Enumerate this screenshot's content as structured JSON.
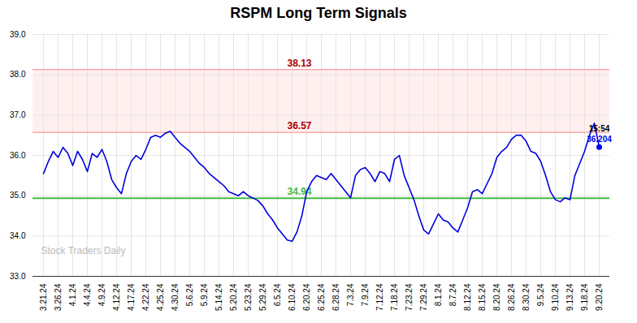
{
  "chart_data": {
    "type": "line",
    "title": "RSPM Long Term Signals",
    "categories": [
      "3.21.24",
      null,
      null,
      "3.26.24",
      null,
      null,
      "4.1.24",
      null,
      null,
      "4.4.24",
      null,
      null,
      "4.9.24",
      null,
      null,
      "4.12.24",
      null,
      null,
      "4.17.24",
      null,
      null,
      "4.22.24",
      null,
      null,
      "4.25.24",
      null,
      null,
      "4.30.24",
      null,
      null,
      "5.6.24",
      null,
      null,
      "5.9.24",
      null,
      null,
      "5.14.24",
      null,
      null,
      "5.20.24",
      null,
      null,
      "5.23.24",
      null,
      null,
      "5.29.24",
      null,
      null,
      "6.5.24",
      null,
      null,
      "6.10.24",
      null,
      null,
      "6.20.24",
      null,
      null,
      "6.25.24",
      null,
      null,
      "6.28.24",
      null,
      null,
      "7.3.24",
      null,
      null,
      "7.9.24",
      null,
      null,
      "7.12.24",
      null,
      null,
      "7.18.24",
      null,
      null,
      "7.23.24",
      null,
      null,
      "7.29.24",
      null,
      null,
      "8.1.24",
      null,
      null,
      "8.7.24",
      null,
      null,
      "8.12.24",
      null,
      null,
      "8.15.24",
      null,
      null,
      "8.20.24",
      null,
      null,
      "8.26.24",
      null,
      null,
      "8.30.24",
      null,
      null,
      "9.5.24",
      null,
      null,
      "9.10.24",
      null,
      null,
      "9.13.24",
      null,
      null,
      "9.18.24",
      null,
      null,
      "9.20.24"
    ],
    "values": [
      35.55,
      35.85,
      36.1,
      35.95,
      36.2,
      36.05,
      35.75,
      36.1,
      35.9,
      35.6,
      36.05,
      35.95,
      36.15,
      35.85,
      35.4,
      35.2,
      35.05,
      35.55,
      35.85,
      36.0,
      35.9,
      36.15,
      36.45,
      36.5,
      36.45,
      36.55,
      36.6,
      36.45,
      36.3,
      36.2,
      36.1,
      35.95,
      35.8,
      35.7,
      35.55,
      35.45,
      35.35,
      35.25,
      35.1,
      35.05,
      35.0,
      35.1,
      35.0,
      34.94,
      34.88,
      34.75,
      34.55,
      34.4,
      34.2,
      34.05,
      33.9,
      33.87,
      34.1,
      34.5,
      35.1,
      35.35,
      35.5,
      35.45,
      35.4,
      35.55,
      35.4,
      35.25,
      35.1,
      34.95,
      35.5,
      35.65,
      35.7,
      35.55,
      35.35,
      35.6,
      35.55,
      35.35,
      35.9,
      36.0,
      35.5,
      35.2,
      34.9,
      34.5,
      34.15,
      34.05,
      34.3,
      34.55,
      34.4,
      34.35,
      34.2,
      34.1,
      34.4,
      34.7,
      35.1,
      35.15,
      35.05,
      35.3,
      35.55,
      35.95,
      36.1,
      36.2,
      36.4,
      36.5,
      36.5,
      36.35,
      36.1,
      36.05,
      35.85,
      35.5,
      35.1,
      34.9,
      34.85,
      34.95,
      34.9,
      35.5,
      35.8,
      36.1,
      36.5,
      36.8,
      36.204
    ],
    "color": "#0000dd",
    "ylim": [
      33,
      39
    ],
    "yticks": [
      33,
      34,
      35,
      36,
      37,
      38,
      39
    ],
    "grid": true,
    "reference_lines": [
      {
        "value": 38.13,
        "color": "#ff9999",
        "label_color": "#aa0000"
      },
      {
        "value": 36.57,
        "color": "#ff9999",
        "label_color": "#aa0000"
      },
      {
        "value": 34.94,
        "color": "#44bb44",
        "label_color": "#44bb44"
      }
    ],
    "band": {
      "range": [
        36.57,
        38.13
      ],
      "color": "#ffdddd"
    },
    "last_point": {
      "value": 36.204,
      "time": "15:54",
      "color": "#0000ee"
    },
    "watermark": "Stock Traders Daily"
  }
}
